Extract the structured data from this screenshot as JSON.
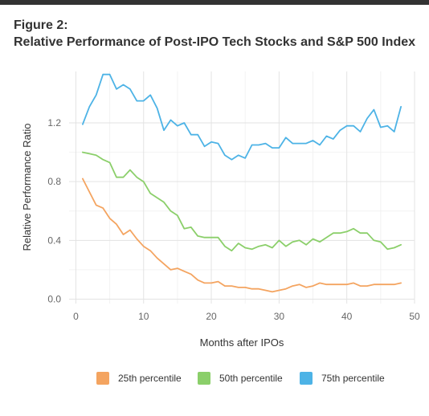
{
  "figure": {
    "label": "Figure 2:",
    "title": "Relative Performance of Post-IPO Tech Stocks and S&P 500 Index"
  },
  "chart_data": {
    "type": "line",
    "title": "Relative Performance of Post-IPO Tech Stocks and S&P 500 Index",
    "xlabel": "Months after IPOs",
    "ylabel": "Relative Performance Ratio",
    "xlim": [
      -1,
      50
    ],
    "ylim": [
      -0.03,
      1.55
    ],
    "xticks": [
      0,
      10,
      20,
      30,
      40,
      50
    ],
    "yticks": [
      0.0,
      0.4,
      0.8,
      1.2
    ],
    "xtick_labels": [
      "0",
      "10",
      "20",
      "30",
      "40",
      "50"
    ],
    "ytick_labels": [
      "0.0",
      "0.4",
      "0.8",
      "1.2"
    ],
    "grid": true,
    "legend_position": "bottom",
    "x": [
      1,
      2,
      3,
      4,
      5,
      6,
      7,
      8,
      9,
      10,
      11,
      12,
      13,
      14,
      15,
      16,
      17,
      18,
      19,
      20,
      21,
      22,
      23,
      24,
      25,
      26,
      27,
      28,
      29,
      30,
      31,
      32,
      33,
      34,
      35,
      36,
      37,
      38,
      39,
      40,
      41,
      42,
      43,
      44,
      45,
      46,
      47,
      48
    ],
    "series": [
      {
        "name": "25th percentile",
        "color": "#F4A460",
        "values": [
          0.82,
          0.73,
          0.64,
          0.62,
          0.55,
          0.51,
          0.44,
          0.47,
          0.41,
          0.36,
          0.33,
          0.28,
          0.24,
          0.2,
          0.21,
          0.19,
          0.17,
          0.13,
          0.11,
          0.11,
          0.12,
          0.09,
          0.09,
          0.08,
          0.08,
          0.07,
          0.07,
          0.06,
          0.05,
          0.06,
          0.07,
          0.09,
          0.1,
          0.08,
          0.09,
          0.11,
          0.1,
          0.1,
          0.1,
          0.1,
          0.11,
          0.09,
          0.09,
          0.1,
          0.1,
          0.1,
          0.1,
          0.11
        ]
      },
      {
        "name": "50th percentile",
        "color": "#8BCF6A",
        "values": [
          1.0,
          0.99,
          0.98,
          0.95,
          0.93,
          0.83,
          0.83,
          0.88,
          0.83,
          0.8,
          0.72,
          0.69,
          0.66,
          0.6,
          0.57,
          0.48,
          0.49,
          0.43,
          0.42,
          0.42,
          0.42,
          0.36,
          0.33,
          0.38,
          0.35,
          0.34,
          0.36,
          0.37,
          0.35,
          0.4,
          0.36,
          0.39,
          0.4,
          0.37,
          0.41,
          0.39,
          0.42,
          0.45,
          0.45,
          0.46,
          0.48,
          0.45,
          0.45,
          0.4,
          0.39,
          0.34,
          0.35,
          0.37
        ]
      },
      {
        "name": "75th percentile",
        "color": "#4DB3E6",
        "values": [
          1.19,
          1.31,
          1.39,
          1.53,
          1.53,
          1.43,
          1.46,
          1.43,
          1.35,
          1.35,
          1.39,
          1.3,
          1.15,
          1.22,
          1.18,
          1.2,
          1.12,
          1.12,
          1.04,
          1.07,
          1.06,
          0.98,
          0.95,
          0.98,
          0.96,
          1.05,
          1.05,
          1.06,
          1.03,
          1.03,
          1.1,
          1.06,
          1.06,
          1.06,
          1.08,
          1.05,
          1.11,
          1.09,
          1.15,
          1.18,
          1.18,
          1.14,
          1.23,
          1.29,
          1.17,
          1.18,
          1.14,
          1.31
        ]
      }
    ]
  }
}
